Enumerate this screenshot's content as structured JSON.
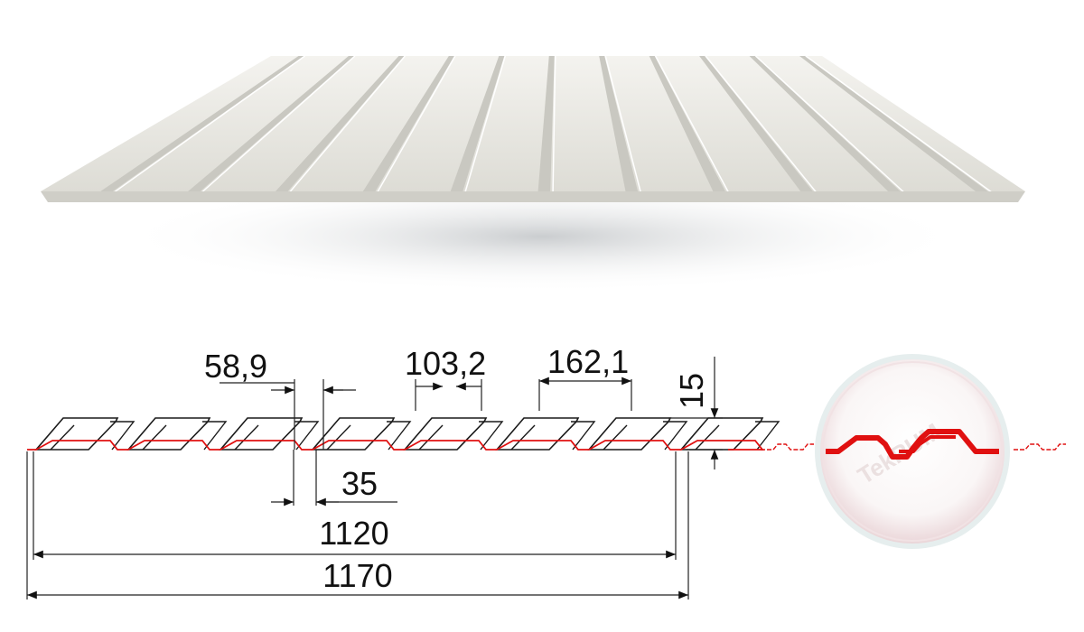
{
  "diagram": {
    "dimensions": {
      "top_width_1": "58,9",
      "pitch_ref": "103,2",
      "pitch": "162,1",
      "height": "15",
      "bottom_width": "35",
      "useful_width": "1120",
      "total_width": "1170"
    },
    "watermark": "TekRUM",
    "colors": {
      "sheet": "#e9e8e2",
      "sheet_shade": "#c9c8c1",
      "outline": "#1a1a1a",
      "profile_accent": "#e01010",
      "dimension_line": "#222222"
    },
    "icons": {
      "panel": "corrugated-sheet-illustration",
      "profile": "sheet-profile-cross-section",
      "detail": "overlap-joint-magnifier-icon"
    }
  }
}
